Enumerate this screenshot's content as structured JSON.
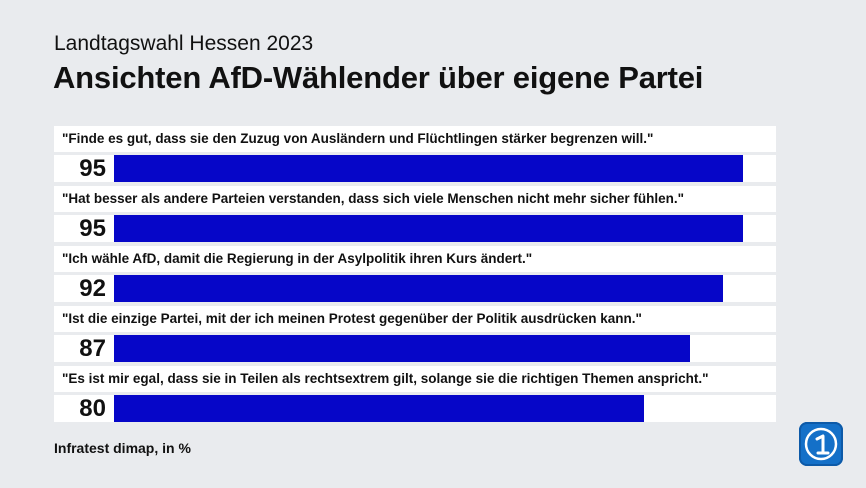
{
  "header": {
    "subtitle": "Landtagswahl Hessen 2023",
    "title": "Ansichten AfD-Wählender über eigene Partei"
  },
  "chart_data": {
    "type": "bar",
    "orientation": "horizontal",
    "categories": [
      "\"Finde es gut, dass sie den Zuzug von Ausländern und Flüchtlingen stärker begrenzen will.\"",
      "\"Hat besser als andere Parteien verstanden, dass sich viele Menschen nicht mehr sicher fühlen.\"",
      "\"Ich wähle AfD, damit die Regierung in der Asylpolitik ihren Kurs ändert.\"",
      "\"Ist die einzige Partei, mit der ich meinen Protest gegenüber der Politik ausdrücken kann.\"",
      "\"Es ist mir egal, dass sie in Teilen als rechtsextrem gilt, solange sie die richtigen Themen anspricht.\""
    ],
    "values": [
      95,
      95,
      92,
      87,
      80
    ],
    "value_labels": [
      "95",
      "95",
      "92",
      "87",
      "80"
    ],
    "xlim": [
      0,
      100
    ],
    "bar_color": "#0606c8",
    "grid": false
  },
  "source": "Infratest dimap, in %",
  "logo": {
    "icon": "ard-tagesschau-logo"
  }
}
